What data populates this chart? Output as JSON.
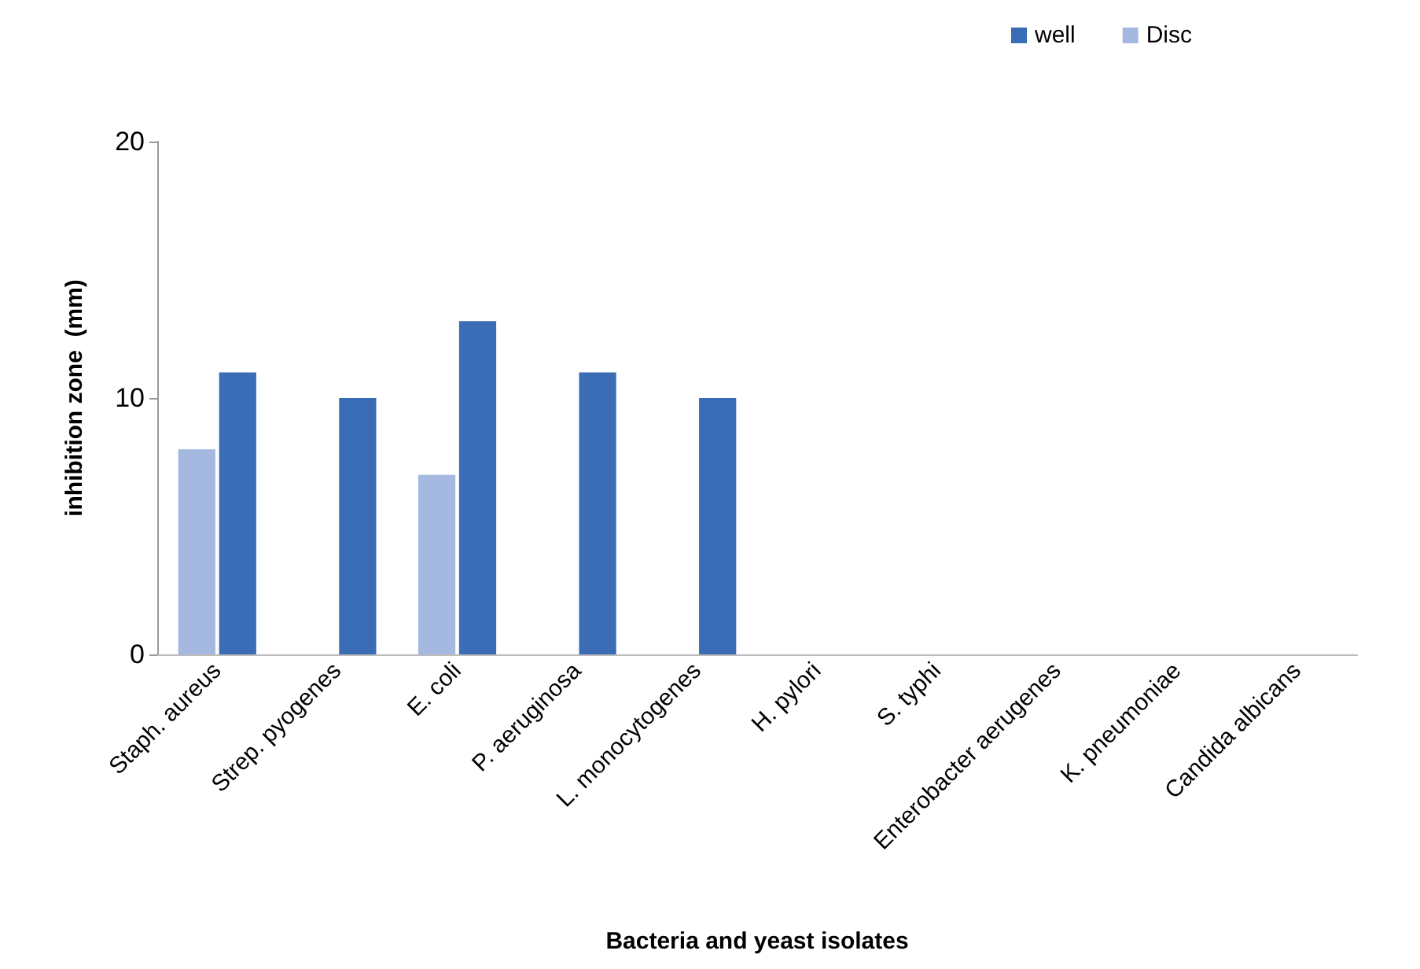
{
  "chart_data": {
    "type": "bar",
    "xlabel": "Bacteria and yeast isolates",
    "ylabel": "inhibition zone  (mm)",
    "categories": [
      "Staph. aureus",
      "Strep. pyogenes",
      "E. coli",
      "P. aeruginosa",
      "L. monocytogenes",
      "H. pylori",
      "S. typhi",
      "Enterobacter aerugenes",
      "K. pneumoniae",
      "Candida albicans"
    ],
    "series": [
      {
        "name": "Disc",
        "color": "#a5b9e0",
        "values": [
          8,
          0,
          7,
          0,
          0,
          0,
          0,
          0,
          0,
          0
        ]
      },
      {
        "name": "well",
        "color": "#3a6db5",
        "values": [
          11,
          10,
          13,
          11,
          10,
          0,
          0,
          0,
          0,
          0
        ]
      }
    ],
    "ylim": [
      0,
      20
    ],
    "yticks": [
      0,
      10,
      20
    ],
    "grid": false,
    "legend": "top right"
  }
}
